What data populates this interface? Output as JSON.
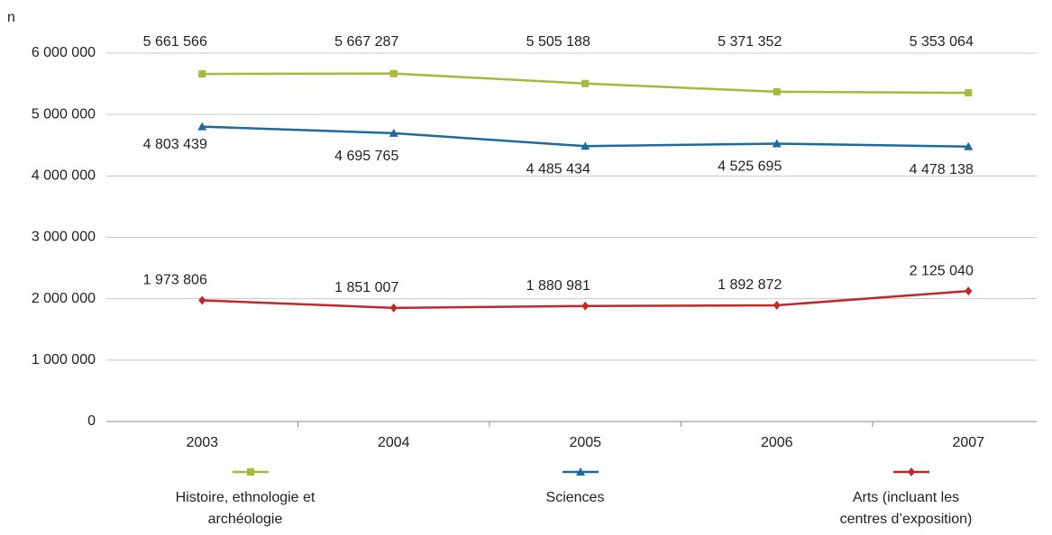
{
  "chart_data": {
    "type": "line",
    "y_label": "n",
    "categories": [
      "2003",
      "2004",
      "2005",
      "2006",
      "2007"
    ],
    "ylim": [
      0,
      6000000
    ],
    "yticks": [
      0,
      {
        "value": 1000000,
        "label": "1 000 000"
      },
      {
        "value": 2000000,
        "label": "2 000 000"
      },
      {
        "value": 3000000,
        "label": "3 000 000"
      },
      {
        "value": 4000000,
        "label": "4 000 000"
      },
      {
        "value": 5000000,
        "label": "5 000 000"
      },
      {
        "value": 6000000,
        "label": "6 000 000"
      }
    ],
    "grid": true,
    "series": [
      {
        "name": "Histoire, ethnologie et archéologie",
        "color": "#a8b83a",
        "marker": "square",
        "values": [
          5661566,
          5667287,
          5505188,
          5371352,
          5353064
        ],
        "value_labels": [
          "5 661 566",
          "5 667 287",
          "5 505 188",
          "5 371 352",
          "5 353 064"
        ]
      },
      {
        "name": "Sciences",
        "color": "#1b6b9b",
        "marker": "triangle",
        "values": [
          4803439,
          4695765,
          4485434,
          4525695,
          4478138
        ],
        "value_labels": [
          "4 803 439",
          "4 695 765",
          "4 485 434",
          "4 525 695",
          "4 478 138"
        ]
      },
      {
        "name": "Arts (incluant les centres d’exposition)",
        "color": "#c0282a",
        "marker": "diamond",
        "values": [
          1973806,
          1851007,
          1880981,
          1892872,
          2125040
        ],
        "value_labels": [
          "1 973 806",
          "1 851 007",
          "1 880 981",
          "1 892 872",
          "2 125 040"
        ]
      }
    ]
  }
}
